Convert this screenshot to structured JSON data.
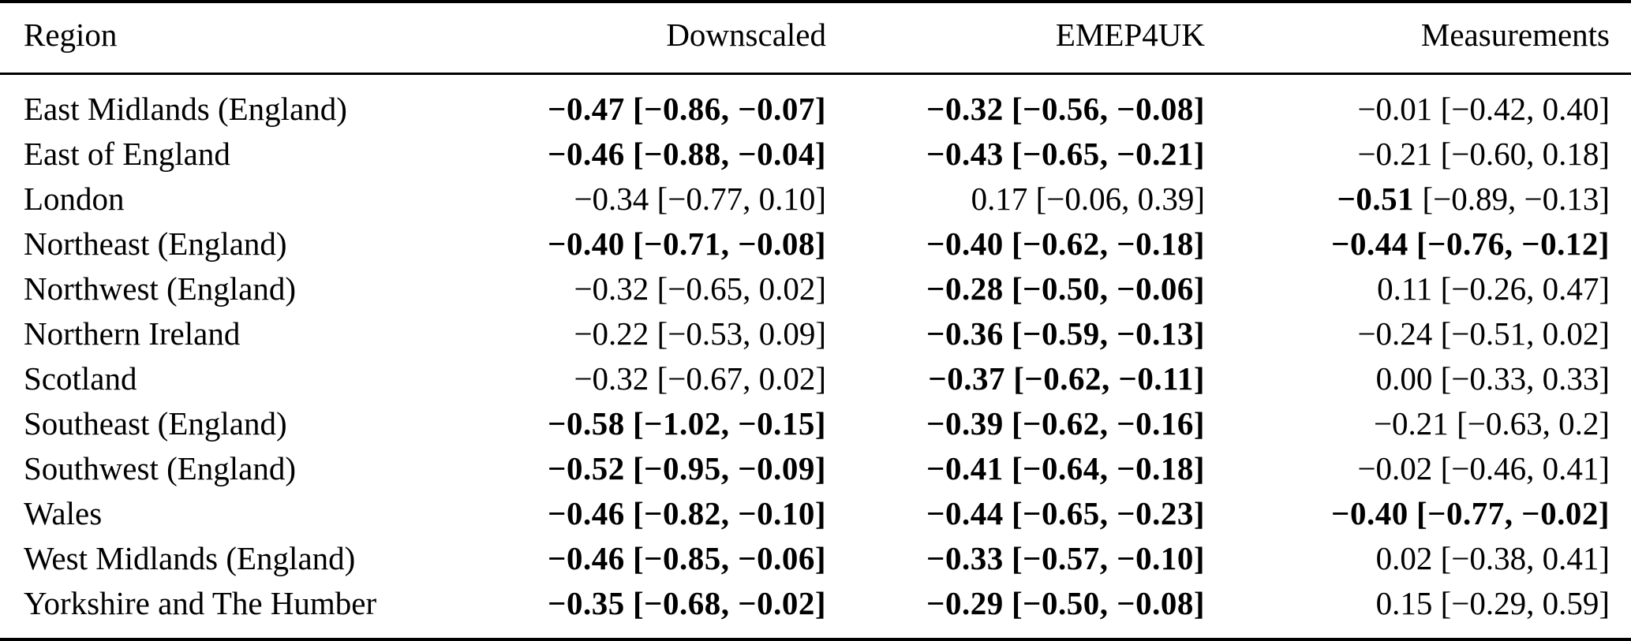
{
  "table": {
    "columns": [
      "Region",
      "Downscaled",
      "EMEP4UK",
      "Measurements"
    ],
    "rows": [
      {
        "region": "East Midlands (England)",
        "downscaled": {
          "value": "−0.47",
          "ci": "[−0.86, −0.07]",
          "value_bold": true,
          "ci_bold": true
        },
        "emep4uk": {
          "value": "−0.32",
          "ci": "[−0.56, −0.08]",
          "value_bold": true,
          "ci_bold": true
        },
        "measurements": {
          "value": "−0.01",
          "ci": "[−0.42, 0.40]",
          "value_bold": false,
          "ci_bold": false
        }
      },
      {
        "region": "East of England",
        "downscaled": {
          "value": "−0.46",
          "ci": "[−0.88, −0.04]",
          "value_bold": true,
          "ci_bold": true
        },
        "emep4uk": {
          "value": "−0.43",
          "ci": "[−0.65, −0.21]",
          "value_bold": true,
          "ci_bold": true
        },
        "measurements": {
          "value": "−0.21",
          "ci": "[−0.60, 0.18]",
          "value_bold": false,
          "ci_bold": false
        }
      },
      {
        "region": "London",
        "downscaled": {
          "value": "−0.34",
          "ci": "[−0.77, 0.10]",
          "value_bold": false,
          "ci_bold": false
        },
        "emep4uk": {
          "value": "0.17",
          "ci": "[−0.06, 0.39]",
          "value_bold": false,
          "ci_bold": false
        },
        "measurements": {
          "value": "−0.51",
          "ci": "[−0.89, −0.13]",
          "value_bold": true,
          "ci_bold": false
        }
      },
      {
        "region": "Northeast (England)",
        "downscaled": {
          "value": "−0.40",
          "ci": "[−0.71, −0.08]",
          "value_bold": true,
          "ci_bold": true
        },
        "emep4uk": {
          "value": "−0.40",
          "ci": "[−0.62, −0.18]",
          "value_bold": true,
          "ci_bold": true
        },
        "measurements": {
          "value": "−0.44",
          "ci": "[−0.76, −0.12]",
          "value_bold": true,
          "ci_bold": true
        }
      },
      {
        "region": "Northwest (England)",
        "downscaled": {
          "value": "−0.32",
          "ci": "[−0.65, 0.02]",
          "value_bold": false,
          "ci_bold": false
        },
        "emep4uk": {
          "value": "−0.28",
          "ci": "[−0.50, −0.06]",
          "value_bold": true,
          "ci_bold": true
        },
        "measurements": {
          "value": "0.11",
          "ci": "[−0.26, 0.47]",
          "value_bold": false,
          "ci_bold": false
        }
      },
      {
        "region": "Northern Ireland",
        "downscaled": {
          "value": "−0.22",
          "ci": "[−0.53, 0.09]",
          "value_bold": false,
          "ci_bold": false
        },
        "emep4uk": {
          "value": "−0.36",
          "ci": "[−0.59, −0.13]",
          "value_bold": true,
          "ci_bold": true
        },
        "measurements": {
          "value": "−0.24",
          "ci": "[−0.51, 0.02]",
          "value_bold": false,
          "ci_bold": false
        }
      },
      {
        "region": "Scotland",
        "downscaled": {
          "value": "−0.32",
          "ci": "[−0.67, 0.02]",
          "value_bold": false,
          "ci_bold": false
        },
        "emep4uk": {
          "value": "−0.37",
          "ci": "[−0.62, −0.11]",
          "value_bold": true,
          "ci_bold": true
        },
        "measurements": {
          "value": "0.00",
          "ci": "[−0.33, 0.33]",
          "value_bold": false,
          "ci_bold": false
        }
      },
      {
        "region": "Southeast (England)",
        "downscaled": {
          "value": "−0.58",
          "ci": "[−1.02, −0.15]",
          "value_bold": true,
          "ci_bold": true
        },
        "emep4uk": {
          "value": "−0.39",
          "ci": "[−0.62, −0.16]",
          "value_bold": true,
          "ci_bold": true
        },
        "measurements": {
          "value": "−0.21",
          "ci": "[−0.63, 0.2]",
          "value_bold": false,
          "ci_bold": false
        }
      },
      {
        "region": "Southwest (England)",
        "downscaled": {
          "value": "−0.52",
          "ci": "[−0.95, −0.09]",
          "value_bold": true,
          "ci_bold": true
        },
        "emep4uk": {
          "value": "−0.41",
          "ci": "[−0.64, −0.18]",
          "value_bold": true,
          "ci_bold": true
        },
        "measurements": {
          "value": "−0.02",
          "ci": "[−0.46, 0.41]",
          "value_bold": false,
          "ci_bold": false
        }
      },
      {
        "region": "Wales",
        "downscaled": {
          "value": "−0.46",
          "ci": "[−0.82, −0.10]",
          "value_bold": true,
          "ci_bold": true
        },
        "emep4uk": {
          "value": "−0.44",
          "ci": "[−0.65, −0.23]",
          "value_bold": true,
          "ci_bold": true
        },
        "measurements": {
          "value": "−0.40",
          "ci": "[−0.77, −0.02]",
          "value_bold": true,
          "ci_bold": true
        }
      },
      {
        "region": "West Midlands (England)",
        "downscaled": {
          "value": "−0.46",
          "ci": "[−0.85, −0.06]",
          "value_bold": true,
          "ci_bold": true
        },
        "emep4uk": {
          "value": "−0.33",
          "ci": "[−0.57, −0.10]",
          "value_bold": true,
          "ci_bold": true
        },
        "measurements": {
          "value": "0.02",
          "ci": "[−0.38, 0.41]",
          "value_bold": false,
          "ci_bold": false
        }
      },
      {
        "region": "Yorkshire and The Humber",
        "downscaled": {
          "value": "−0.35",
          "ci": "[−0.68, −0.02]",
          "value_bold": true,
          "ci_bold": true
        },
        "emep4uk": {
          "value": "−0.29",
          "ci": "[−0.50, −0.08]",
          "value_bold": true,
          "ci_bold": true
        },
        "measurements": {
          "value": "0.15",
          "ci": "[−0.29, 0.59]",
          "value_bold": false,
          "ci_bold": false
        }
      }
    ]
  },
  "colors": {
    "text": "#000000",
    "background": "#ffffff",
    "rule": "#000000"
  }
}
